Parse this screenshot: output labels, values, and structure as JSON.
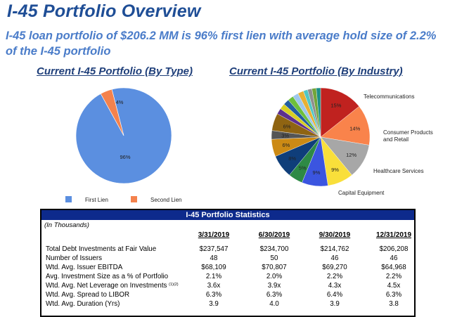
{
  "page": {
    "title": "I-45 Portfolio Overview",
    "subtitle": "I-45 loan portfolio of $206.2 MM is 96% first lien with average hold size of 2.2% of the I-45 portfolio"
  },
  "colors": {
    "title": "#1f4e96",
    "subtitle": "#4a7cc9",
    "table_header": "#0d2a8c"
  },
  "chart_data": [
    {
      "type": "pie",
      "title": "Current I-45 Portfolio (By Type)",
      "slices": [
        {
          "name": "First Lien",
          "value": 96,
          "label": "96%",
          "color": "#5b8fe0"
        },
        {
          "name": "Second Lien",
          "value": 4,
          "label": "4%",
          "color": "#f4824d"
        }
      ],
      "legend": "bottom"
    },
    {
      "type": "pie",
      "title": "Current I-45 Portfolio (By Industry)",
      "slices": [
        {
          "name": "Telecommunications",
          "value": 15,
          "label": "15%",
          "color": "#c0221f"
        },
        {
          "name": "Consumer Products and Retail",
          "value": 14,
          "label": "14%",
          "color": "#f9834b"
        },
        {
          "name": "Healthcare Services",
          "value": 12,
          "label": "12%",
          "color": "#a7a7a7"
        },
        {
          "name": "Capital Equipment",
          "value": 9,
          "label": "9%",
          "color": "#f9df3a"
        },
        {
          "name": "",
          "value": 9,
          "label": "9%",
          "color": "#3b55e0"
        },
        {
          "name": "",
          "value": 5,
          "label": "5%",
          "color": "#2e8a45"
        },
        {
          "name": "",
          "value": 8,
          "label": "8%",
          "color": "#0f3e7a"
        },
        {
          "name": "",
          "value": 6,
          "label": "6%",
          "color": "#cc8a14"
        },
        {
          "name": "",
          "value": 3,
          "label": "3%",
          "color": "#555555"
        },
        {
          "name": "",
          "value": 6,
          "label": "6%",
          "color": "#8f6412"
        },
        {
          "name": "",
          "value": 2,
          "label": "",
          "color": "#5d2f8f"
        },
        {
          "name": "",
          "value": 2,
          "label": "",
          "color": "#d8cf22"
        },
        {
          "name": "",
          "value": 2,
          "label": "",
          "color": "#235ea0"
        },
        {
          "name": "",
          "value": 2,
          "label": "",
          "color": "#6dbf3b"
        },
        {
          "name": "",
          "value": 2,
          "label": "",
          "color": "#9ec7ec"
        },
        {
          "name": "",
          "value": 2,
          "label": "",
          "color": "#e8b032"
        },
        {
          "name": "",
          "value": 1.5,
          "label": "",
          "color": "#4fc7c4"
        },
        {
          "name": "",
          "value": 1.5,
          "label": "",
          "color": "#8f8f8f"
        },
        {
          "name": "",
          "value": 1.5,
          "label": "",
          "color": "#72a53a"
        },
        {
          "name": "",
          "value": 1.5,
          "label": "",
          "color": "#1d8e86"
        }
      ],
      "labelled_slices": [
        "Telecommunications",
        "Consumer Products",
        "and Retail",
        "Healthcare Services",
        "Capital Equipment"
      ]
    }
  ],
  "stats": {
    "header": "I-45 Portfolio Statistics",
    "units": "(In Thousands)",
    "columns": [
      "3/31/2019",
      "6/30/2019",
      "9/30/2019",
      "12/31/2019"
    ],
    "rows": [
      {
        "label": "Total Debt Investments at Fair Value",
        "sup": "",
        "values": [
          "$237,547",
          "$234,700",
          "$214,762",
          "$206,208"
        ]
      },
      {
        "label": "Number of Issuers",
        "sup": "",
        "values": [
          "48",
          "50",
          "46",
          "46"
        ]
      },
      {
        "label": "Wtd. Avg. Issuer EBITDA",
        "sup": "",
        "values": [
          "$68,109",
          "$70,807",
          "$69,270",
          "$64,968"
        ]
      },
      {
        "label": "Avg. Investment Size as a % of Portfolio",
        "sup": "",
        "values": [
          "2.1%",
          "2.0%",
          "2.2%",
          "2.2%"
        ]
      },
      {
        "label": "Wtd. Avg. Net Leverage on Investments ",
        "sup": "(1)(2)",
        "values": [
          "3.6x",
          "3.9x",
          "4.3x",
          "4.5x"
        ]
      },
      {
        "label": "Wtd. Avg. Spread to LIBOR",
        "sup": "",
        "values": [
          "6.3%",
          "6.3%",
          "6.4%",
          "6.3%"
        ]
      },
      {
        "label": "Wtd. Avg. Duration (Yrs)",
        "sup": "",
        "values": [
          "3.9",
          "4.0",
          "3.9",
          "3.8"
        ]
      }
    ]
  }
}
